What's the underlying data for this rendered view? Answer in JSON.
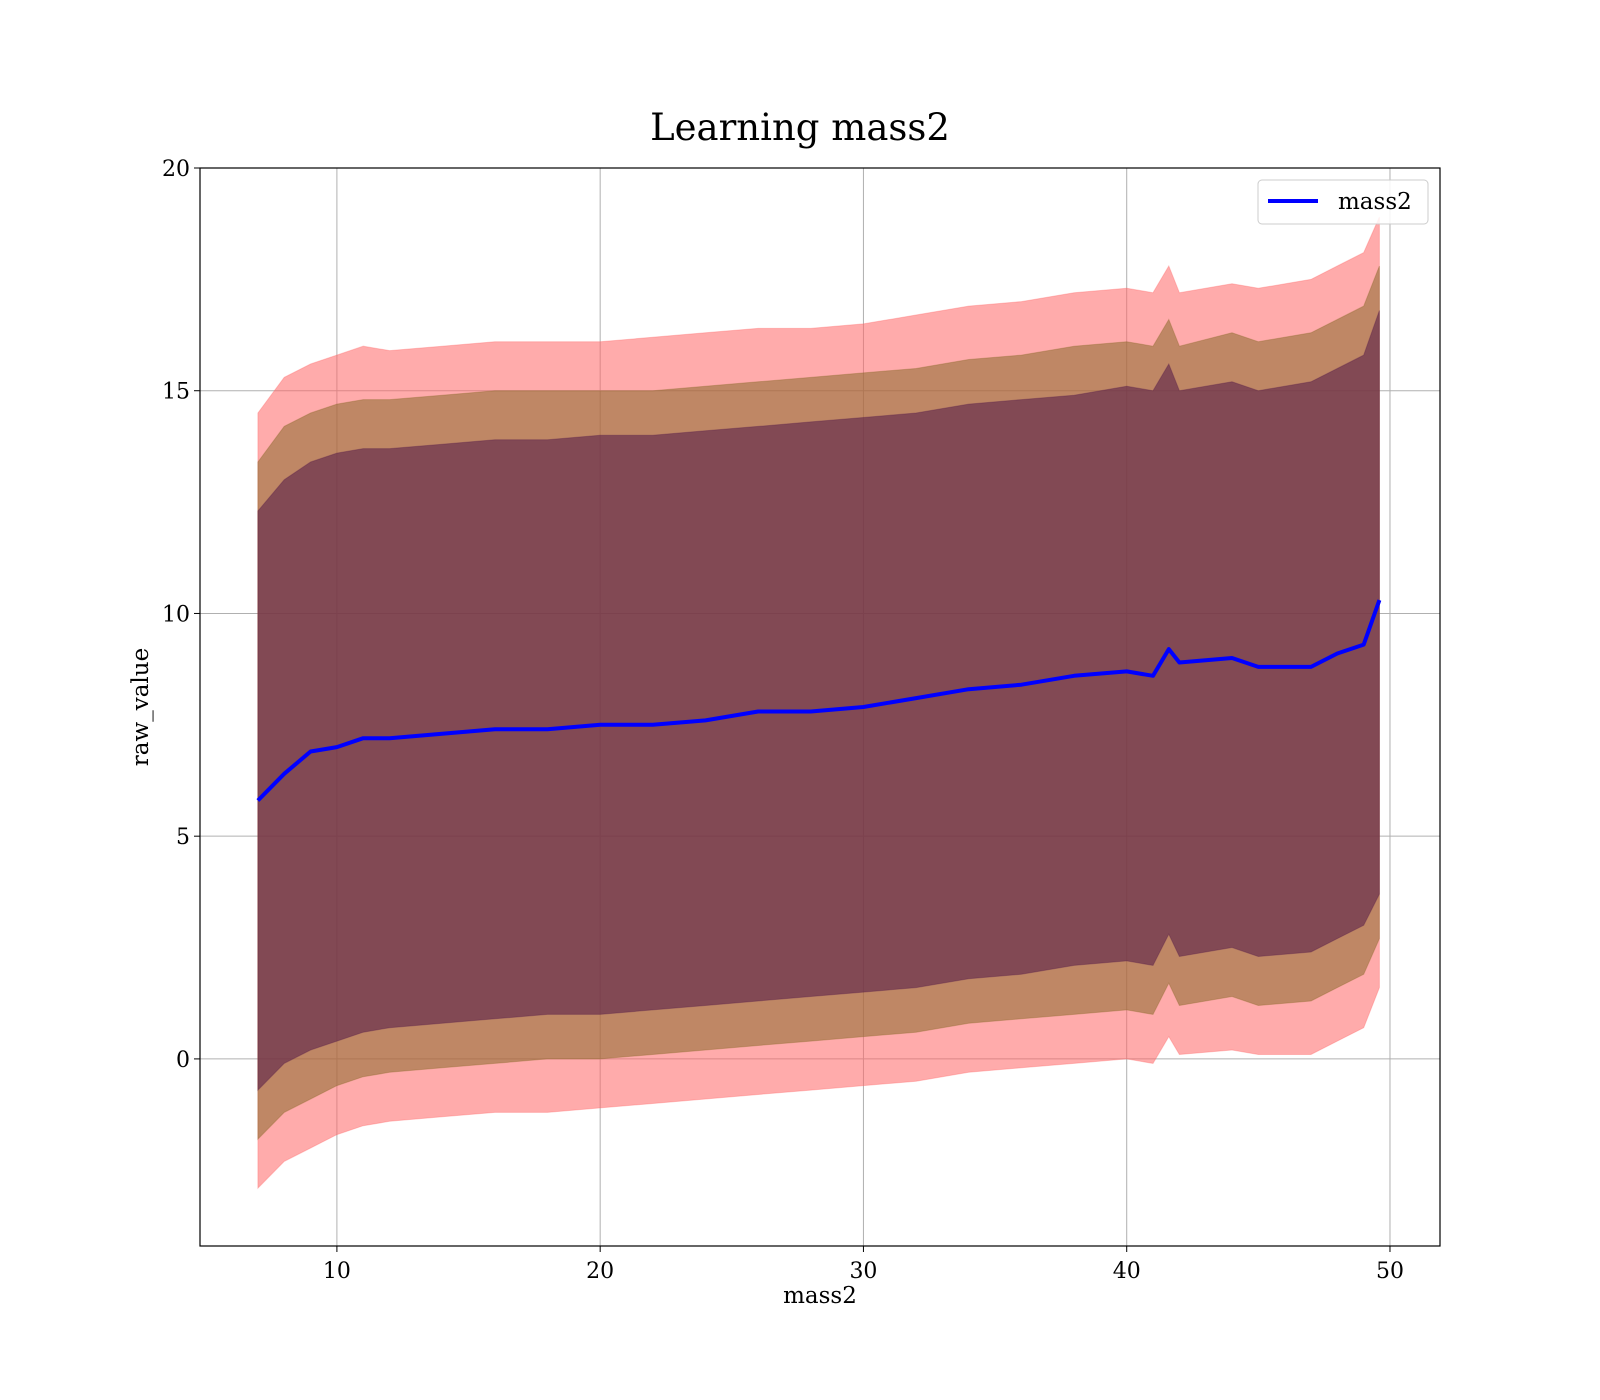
{
  "chart_data": {
    "type": "area",
    "title": "Learning mass2",
    "xlabel": "mass2",
    "ylabel": "raw_value",
    "xlim": [
      4.8,
      51.9
    ],
    "ylim": [
      -4.2,
      20
    ],
    "xticks": [
      10,
      20,
      30,
      40,
      50
    ],
    "yticks": [
      0,
      5,
      10,
      15,
      20
    ],
    "grid": true,
    "legend": {
      "position": "top-right",
      "entries": [
        "mass2"
      ]
    },
    "colors": {
      "mean_line": "#0000ff",
      "band_3sigma": "#ff6666",
      "band_2sigma": "#8b6a2c",
      "band_1sigma": "#5a1f4a"
    },
    "x": [
      7,
      8,
      9,
      10,
      11,
      12,
      14,
      16,
      18,
      20,
      22,
      24,
      26,
      28,
      30,
      32,
      34,
      36,
      38,
      40,
      41,
      41.6,
      42,
      44,
      45,
      47,
      48,
      49,
      49.6
    ],
    "series": [
      {
        "name": "mass2",
        "role": "mean",
        "values": [
          5.8,
          6.4,
          6.9,
          7.0,
          7.2,
          7.2,
          7.3,
          7.4,
          7.4,
          7.5,
          7.5,
          7.6,
          7.8,
          7.8,
          7.9,
          8.1,
          8.3,
          8.4,
          8.6,
          8.7,
          8.6,
          9.2,
          8.9,
          9.0,
          8.8,
          8.8,
          9.1,
          9.3,
          10.3
        ]
      },
      {
        "role": "band_3sigma",
        "upper": [
          14.5,
          15.3,
          15.6,
          15.8,
          16.0,
          15.9,
          16.0,
          16.1,
          16.1,
          16.1,
          16.2,
          16.3,
          16.4,
          16.4,
          16.5,
          16.7,
          16.9,
          17.0,
          17.2,
          17.3,
          17.2,
          17.8,
          17.2,
          17.4,
          17.3,
          17.5,
          17.8,
          18.1,
          18.9
        ],
        "lower": [
          -2.9,
          -2.3,
          -2.0,
          -1.7,
          -1.5,
          -1.4,
          -1.3,
          -1.2,
          -1.2,
          -1.1,
          -1.0,
          -0.9,
          -0.8,
          -0.7,
          -0.6,
          -0.5,
          -0.3,
          -0.2,
          -0.1,
          0.0,
          -0.1,
          0.5,
          0.1,
          0.2,
          0.1,
          0.1,
          0.4,
          0.7,
          1.6
        ]
      },
      {
        "role": "band_2sigma",
        "upper": [
          13.4,
          14.2,
          14.5,
          14.7,
          14.8,
          14.8,
          14.9,
          15.0,
          15.0,
          15.0,
          15.0,
          15.1,
          15.2,
          15.3,
          15.4,
          15.5,
          15.7,
          15.8,
          16.0,
          16.1,
          16.0,
          16.6,
          16.0,
          16.3,
          16.1,
          16.3,
          16.6,
          16.9,
          17.8
        ],
        "lower": [
          -1.8,
          -1.2,
          -0.9,
          -0.6,
          -0.4,
          -0.3,
          -0.2,
          -0.1,
          0.0,
          0.0,
          0.1,
          0.2,
          0.3,
          0.4,
          0.5,
          0.6,
          0.8,
          0.9,
          1.0,
          1.1,
          1.0,
          1.7,
          1.2,
          1.4,
          1.2,
          1.3,
          1.6,
          1.9,
          2.7
        ]
      },
      {
        "role": "band_1sigma",
        "upper": [
          12.3,
          13.0,
          13.4,
          13.6,
          13.7,
          13.7,
          13.8,
          13.9,
          13.9,
          14.0,
          14.0,
          14.1,
          14.2,
          14.3,
          14.4,
          14.5,
          14.7,
          14.8,
          14.9,
          15.1,
          15.0,
          15.6,
          15.0,
          15.2,
          15.0,
          15.2,
          15.5,
          15.8,
          16.8
        ],
        "lower": [
          -0.7,
          -0.1,
          0.2,
          0.4,
          0.6,
          0.7,
          0.8,
          0.9,
          1.0,
          1.0,
          1.1,
          1.2,
          1.3,
          1.4,
          1.5,
          1.6,
          1.8,
          1.9,
          2.1,
          2.2,
          2.1,
          2.8,
          2.3,
          2.5,
          2.3,
          2.4,
          2.7,
          3.0,
          3.7
        ]
      }
    ]
  }
}
